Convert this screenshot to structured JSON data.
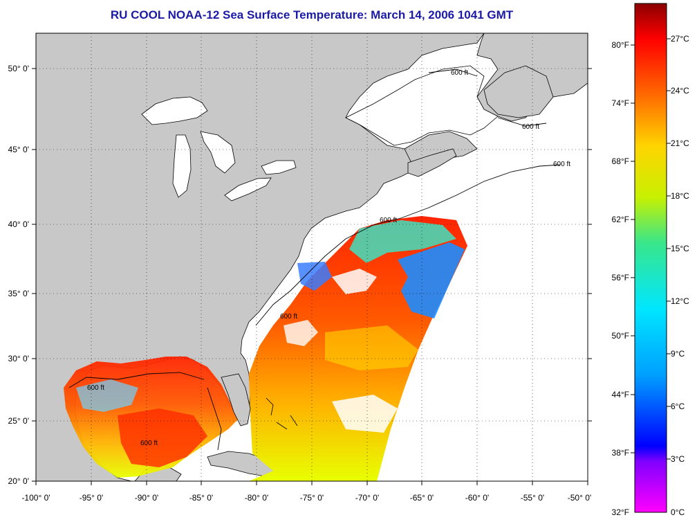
{
  "title": "RU COOL  NOAA-12  Sea Surface Temperature:  March 14, 2006 1041 GMT",
  "map": {
    "lon_range": [
      -100,
      -50
    ],
    "lat_range": [
      20,
      52.5
    ],
    "lon_ticks": [
      "-100° 0'",
      "-95° 0'",
      "-90° 0'",
      "-85° 0'",
      "-80° 0'",
      "-75° 0'",
      "-70° 0'",
      "-65° 0'",
      "-60° 0'",
      "-55° 0'",
      "-50° 0'"
    ],
    "lat_ticks": [
      "20° 0'",
      "25° 0'",
      "30° 0'",
      "35° 0'",
      "40° 0'",
      "45° 0'",
      "50° 0'"
    ],
    "gridlines": "dotted",
    "contour_label": "600 ft",
    "colors": {
      "land": "#c8c8c8",
      "coast": "#000000",
      "no_data": "#ffffff"
    }
  },
  "colorbar": {
    "f_labels": [
      "80°F",
      "74°F",
      "68°F",
      "62°F",
      "56°F",
      "50°F",
      "44°F",
      "38°F",
      "32°F"
    ],
    "c_labels": [
      "27°C",
      "24°C",
      "21°C",
      "18°C",
      "15°C",
      "12°C",
      "9°C",
      "6°C",
      "3°C",
      "0°C"
    ],
    "colors": [
      "#8b0000",
      "#ff0000",
      "#ff6a00",
      "#ffd400",
      "#c8f000",
      "#39e68a",
      "#00e6ff",
      "#00a0ff",
      "#0000ff",
      "#8000ff",
      "#ff00ff"
    ]
  }
}
